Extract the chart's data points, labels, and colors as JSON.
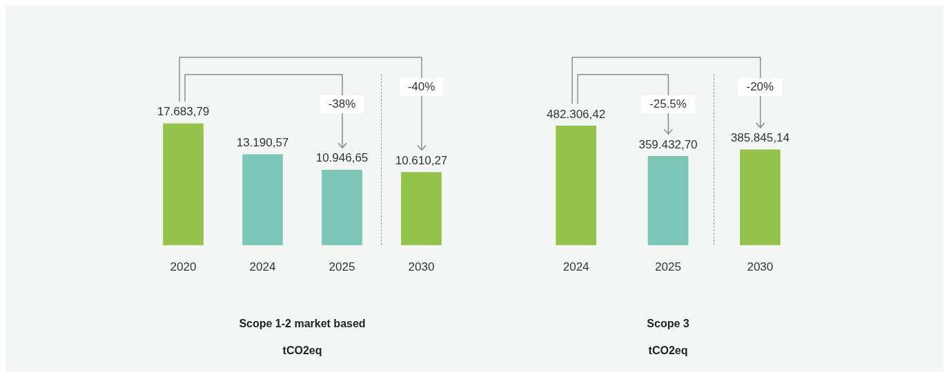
{
  "chart_data": [
    {
      "type": "bar",
      "title": "Scope 1-2 market based",
      "subtitle": "tCO2eq",
      "categories": [
        "2020",
        "2024",
        "2025",
        "2030"
      ],
      "values": [
        17683.79,
        13190.57,
        10946.65,
        10610.27
      ],
      "value_labels": [
        "17.683,79",
        "13.190,57",
        "10.946,65",
        "10.610,27"
      ],
      "colors": [
        "#94c24a",
        "#7cc6b6",
        "#7cc6b6",
        "#94c24a"
      ],
      "annotations": [
        "-38%",
        "-40%"
      ],
      "legend": false,
      "grid": false
    },
    {
      "type": "bar",
      "title": "Scope 3",
      "subtitle": "tCO2eq",
      "categories": [
        "2024",
        "2025",
        "2030"
      ],
      "values": [
        482306.42,
        359432.7,
        385845.14
      ],
      "value_labels": [
        "482.306,42",
        "359.432,70",
        "385.845,14"
      ],
      "colors": [
        "#94c24a",
        "#7cc6b6",
        "#94c24a"
      ],
      "annotations": [
        "-25.5%",
        "-20%"
      ],
      "legend": false,
      "grid": false
    }
  ]
}
